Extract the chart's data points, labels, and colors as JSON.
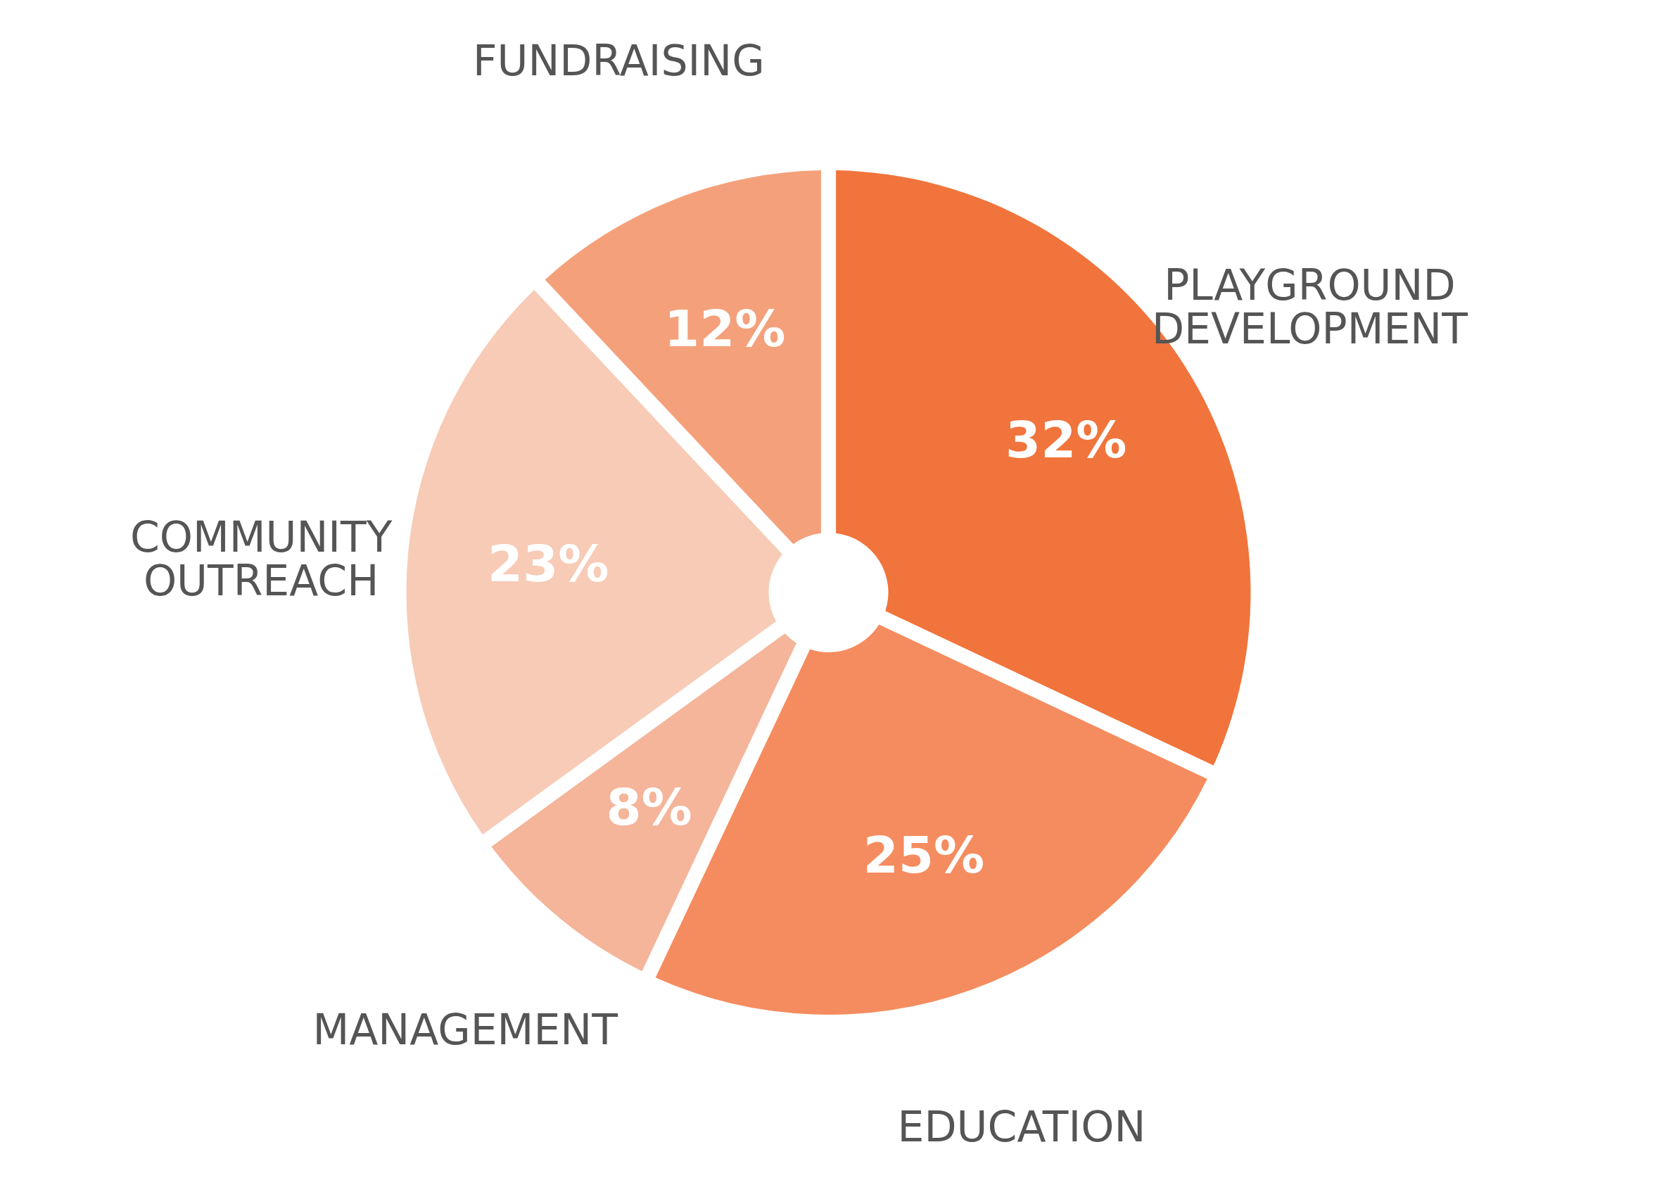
{
  "chart_data": {
    "type": "donut",
    "categories": [
      "PLAYGROUND DEVELOPMENT",
      "EDUCATION",
      "MANAGEMENT",
      "COMMUNITY OUTREACH",
      "FUNDRAISING"
    ],
    "values": [
      32,
      25,
      8,
      23,
      12
    ],
    "value_labels": [
      "32%",
      "25%",
      "8%",
      "23%",
      "12%"
    ],
    "colors": [
      "#f0743c",
      "#f58c5f",
      "#f4b59a",
      "#f7cbb6",
      "#f4a17b"
    ],
    "legend": false
  }
}
